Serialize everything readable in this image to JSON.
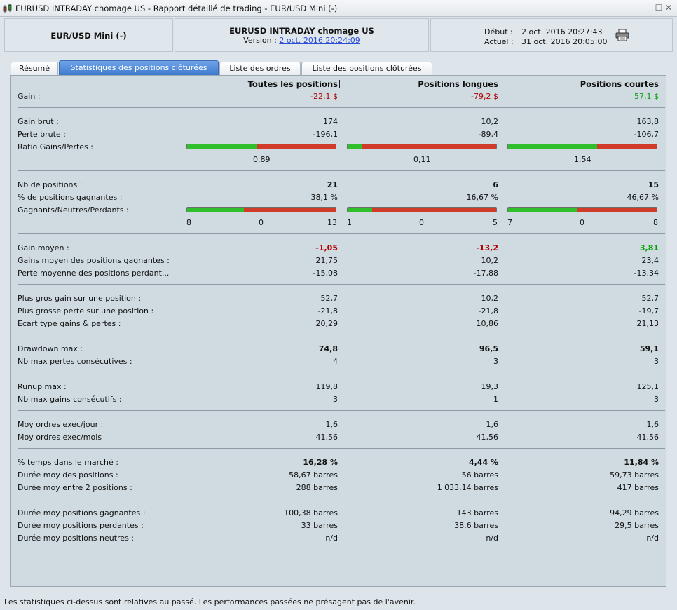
{
  "window": {
    "title": "EURUSD INTRADAY chomage US - Rapport détaillé de trading - EUR/USD Mini (-)",
    "buttons": [
      "—",
      "☐",
      "✕"
    ]
  },
  "header": {
    "instrument": "EUR/USD Mini (-)",
    "strategy": "EURUSD INTRADAY chomage US",
    "version_label": "Version :",
    "version_link": "2 oct. 2016 20:24:09",
    "start_label": "Début :",
    "start_value": "2 oct. 2016 20:27:43",
    "end_label": "Actuel :",
    "end_value": "31 oct. 2016 20:05:00",
    "print_icon": "printer-icon"
  },
  "tabs": [
    {
      "label": "Résumé"
    },
    {
      "label": "Statistiques des positions clôturées"
    },
    {
      "label": "Liste des ordres"
    },
    {
      "label": "Liste des positions clôturées"
    }
  ],
  "active_tab": 1,
  "columns": [
    "Toutes les positions",
    "Positions longues",
    "Positions courtes"
  ],
  "colors": {
    "negative": "#b00000",
    "positive": "#00a000",
    "bar_green": "#2fbf2a",
    "bar_red": "#d03b2a",
    "active_tab": "#3e7ad0"
  },
  "stats": {
    "gain": {
      "label": "Gain :",
      "v": [
        "-22,1 $",
        "-79,2 $",
        "57,1 $"
      ]
    },
    "gain_brut": {
      "label": "Gain brut :",
      "v": [
        "174",
        "10,2",
        "163,8"
      ]
    },
    "perte_brute": {
      "label": "Perte brute :",
      "v": [
        "-196,1",
        "-89,4",
        "-106,7"
      ]
    },
    "ratio": {
      "label": "Ratio Gains/Pertes :",
      "fraction": [
        0.47,
        0.1,
        0.6
      ],
      "v": [
        "0,89",
        "0,11",
        "1,54"
      ]
    },
    "nb_positions": {
      "label": "Nb de positions :",
      "v": [
        "21",
        "6",
        "15"
      ]
    },
    "pct_gagnantes": {
      "label": "% de positions gagnantes :",
      "v": [
        "38,1 %",
        "16,67 %",
        "46,67 %"
      ]
    },
    "gnp": {
      "label": "Gagnants/Neutres/Perdants :",
      "fraction": [
        0.381,
        0.1667,
        0.4667
      ],
      "g": [
        "8",
        "1",
        "7"
      ],
      "n": [
        "0",
        "0",
        "0"
      ],
      "p": [
        "13",
        "5",
        "8"
      ]
    },
    "gain_moyen": {
      "label": "Gain moyen :",
      "v": [
        "-1,05",
        "-13,2",
        "3,81"
      ]
    },
    "gains_moyen_gagnantes": {
      "label": "Gains moyen des positions gagnantes :",
      "v": [
        "21,75",
        "10,2",
        "23,4"
      ]
    },
    "perte_moyenne_perdantes": {
      "label": "Perte moyenne des positions perdant...",
      "v": [
        "-15,08",
        "-17,88",
        "-13,34"
      ]
    },
    "plus_gros_gain": {
      "label": "Plus gros gain sur une position :",
      "v": [
        "52,7",
        "10,2",
        "52,7"
      ]
    },
    "plus_grosse_perte": {
      "label": "Plus grosse perte sur une position :",
      "v": [
        "-21,8",
        "-21,8",
        "-19,7"
      ]
    },
    "ecart_type": {
      "label": "Ecart type gains & pertes :",
      "v": [
        "20,29",
        "10,86",
        "21,13"
      ]
    },
    "drawdown_max": {
      "label": "Drawdown max :",
      "v": [
        "74,8",
        "96,5",
        "59,1"
      ]
    },
    "nb_max_pertes": {
      "label": "Nb max pertes consécutives :",
      "v": [
        "4",
        "3",
        "3"
      ]
    },
    "runup_max": {
      "label": "Runup max :",
      "v": [
        "119,8",
        "19,3",
        "125,1"
      ]
    },
    "nb_max_gains": {
      "label": "Nb max gains consécutifs :",
      "v": [
        "3",
        "1",
        "3"
      ]
    },
    "moy_ordres_jour": {
      "label": "Moy ordres exec/jour :",
      "v": [
        "1,6",
        "1,6",
        "1,6"
      ]
    },
    "moy_ordres_mois": {
      "label": "Moy ordres exec/mois",
      "v": [
        "41,56",
        "41,56",
        "41,56"
      ]
    },
    "pct_temps_marche": {
      "label": "% temps dans le marché :",
      "v": [
        "16,28 %",
        "4,44 %",
        "11,84 %"
      ]
    },
    "duree_moy_positions": {
      "label": "Durée moy des positions :",
      "v": [
        "58,67 barres",
        "56 barres",
        "59,73 barres"
      ]
    },
    "duree_moy_entre": {
      "label": "Durée moy entre 2 positions :",
      "v": [
        "288 barres",
        "1 033,14 barres",
        "417 barres"
      ]
    },
    "duree_moy_gagnantes": {
      "label": "Durée moy positions gagnantes :",
      "v": [
        "100,38 barres",
        "143 barres",
        "94,29 barres"
      ]
    },
    "duree_moy_perdantes": {
      "label": "Durée moy positions perdantes :",
      "v": [
        "33 barres",
        "38,6 barres",
        "29,5 barres"
      ]
    },
    "duree_moy_neutres": {
      "label": "Durée moy positions neutres :",
      "v": [
        "n/d",
        "n/d",
        "n/d"
      ]
    }
  },
  "status": "Les statistiques ci-dessus sont relatives au passé. Les performances passées ne présagent pas de l'avenir."
}
